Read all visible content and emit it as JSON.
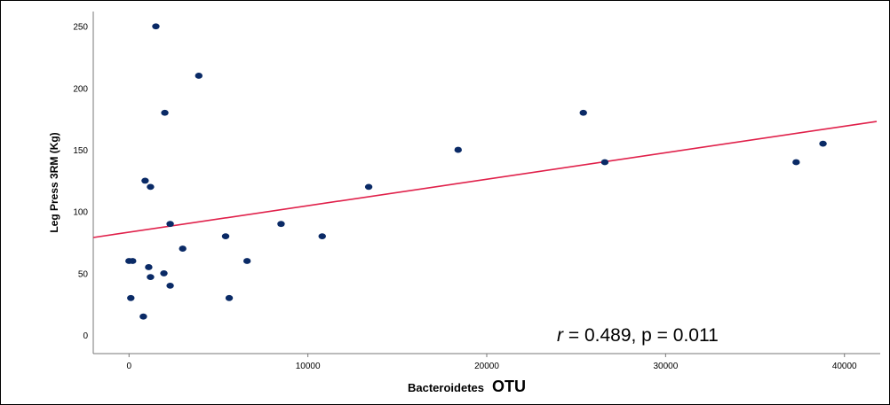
{
  "chart_data": {
    "type": "scatter",
    "xlabel_main": "Bacteroidetes",
    "xlabel_suffix": "OTU",
    "ylabel": "Leg Press 3RM (Kg)",
    "xlim": [
      -2000,
      42000
    ],
    "ylim": [
      -15,
      262
    ],
    "x_ticks": [
      0,
      10000,
      20000,
      30000,
      40000
    ],
    "y_ticks": [
      0,
      50,
      100,
      150,
      200,
      250
    ],
    "grid": false,
    "point_color": "#0a2a66",
    "line_color": "#e0204a",
    "points": [
      {
        "x": 0,
        "y": 60
      },
      {
        "x": 200,
        "y": 60
      },
      {
        "x": 100,
        "y": 30
      },
      {
        "x": 800,
        "y": 15
      },
      {
        "x": 900,
        "y": 125
      },
      {
        "x": 1200,
        "y": 120
      },
      {
        "x": 1100,
        "y": 55
      },
      {
        "x": 1200,
        "y": 47
      },
      {
        "x": 1500,
        "y": 250
      },
      {
        "x": 2000,
        "y": 180
      },
      {
        "x": 1950,
        "y": 50
      },
      {
        "x": 2300,
        "y": 90
      },
      {
        "x": 2300,
        "y": 40
      },
      {
        "x": 3000,
        "y": 70
      },
      {
        "x": 3900,
        "y": 210
      },
      {
        "x": 5400,
        "y": 80
      },
      {
        "x": 5600,
        "y": 30
      },
      {
        "x": 6600,
        "y": 60
      },
      {
        "x": 8500,
        "y": 90
      },
      {
        "x": 10800,
        "y": 80
      },
      {
        "x": 13400,
        "y": 120
      },
      {
        "x": 18400,
        "y": 150
      },
      {
        "x": 25400,
        "y": 180
      },
      {
        "x": 26600,
        "y": 140
      },
      {
        "x": 37300,
        "y": 140
      },
      {
        "x": 38800,
        "y": 155
      }
    ],
    "fit_line": {
      "x1": -2000,
      "y1": 79,
      "x2": 41800,
      "y2": 173
    },
    "annotation": {
      "r_symbol": "r",
      "text": "= 0.489, p = 0.011"
    }
  }
}
